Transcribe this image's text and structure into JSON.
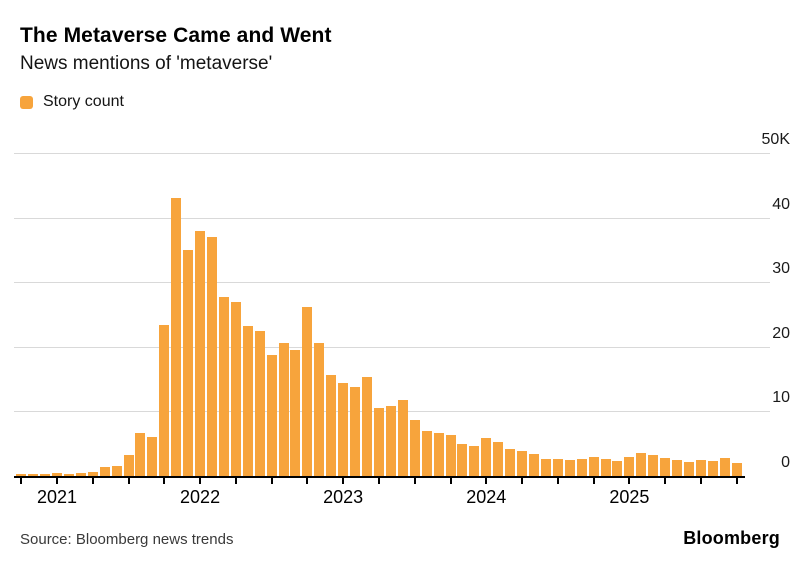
{
  "header": {
    "title": "The Metaverse Came and Went",
    "subtitle": "News mentions of 'metaverse'"
  },
  "legend": {
    "label": "Story count",
    "swatch_color": "#F7A43C"
  },
  "footer": {
    "source": "Source: Bloomberg news trends",
    "brand": "Bloomberg"
  },
  "colors": {
    "bar": "#F7A43C",
    "gridline": "#d9d9d9",
    "axis": "#000000"
  },
  "chart_data": {
    "type": "bar",
    "title": "The Metaverse Came and Went",
    "subtitle": "News mentions of 'metaverse'",
    "series_name": "Story count",
    "unit": "thousands of stories per month",
    "x": [
      "2020-10",
      "2020-11",
      "2020-12",
      "2021-01",
      "2021-02",
      "2021-03",
      "2021-04",
      "2021-05",
      "2021-06",
      "2021-07",
      "2021-08",
      "2021-09",
      "2021-10",
      "2021-11",
      "2021-12",
      "2022-01",
      "2022-02",
      "2022-03",
      "2022-04",
      "2022-05",
      "2022-06",
      "2022-07",
      "2022-08",
      "2022-09",
      "2022-10",
      "2022-11",
      "2022-12",
      "2023-01",
      "2023-02",
      "2023-03",
      "2023-04",
      "2023-05",
      "2023-06",
      "2023-07",
      "2023-08",
      "2023-09",
      "2023-10",
      "2023-11",
      "2023-12",
      "2024-01",
      "2024-02",
      "2024-03",
      "2024-04",
      "2024-05",
      "2024-06",
      "2024-07",
      "2024-08",
      "2024-09",
      "2024-10",
      "2024-11",
      "2024-12",
      "2025-01",
      "2025-02",
      "2025-03",
      "2025-04",
      "2025-05",
      "2025-06",
      "2025-07",
      "2025-08",
      "2025-09",
      "2025-10"
    ],
    "values": [
      0.3,
      0.3,
      0.3,
      0.4,
      0.3,
      0.5,
      0.6,
      1.4,
      1.6,
      3.3,
      6.6,
      6.1,
      23.3,
      43.0,
      35.0,
      38.0,
      37.0,
      27.7,
      27.0,
      23.2,
      22.4,
      18.8,
      20.6,
      19.5,
      26.2,
      20.6,
      15.6,
      14.4,
      13.8,
      15.4,
      10.5,
      10.8,
      11.7,
      8.6,
      7.0,
      6.6,
      6.3,
      5.0,
      4.7,
      5.9,
      5.3,
      4.2,
      3.9,
      3.4,
      2.7,
      2.7,
      2.4,
      2.6,
      3.0,
      2.6,
      2.3,
      3.0,
      3.5,
      3.2,
      2.8,
      2.4,
      2.2,
      2.5,
      2.3,
      2.8,
      2.0
    ],
    "y_tick_labels": [
      "50K",
      "40",
      "30",
      "20",
      "10",
      "0"
    ],
    "y_tick_values": [
      50,
      40,
      30,
      20,
      10,
      0
    ],
    "ylim": [
      0,
      50
    ],
    "x_year_labels": [
      "2021",
      "2022",
      "2023",
      "2024",
      "2025"
    ],
    "x_tick_interval": "quarterly",
    "grid": true,
    "legend_position": "top-left",
    "bar_color": "#F7A43C"
  }
}
